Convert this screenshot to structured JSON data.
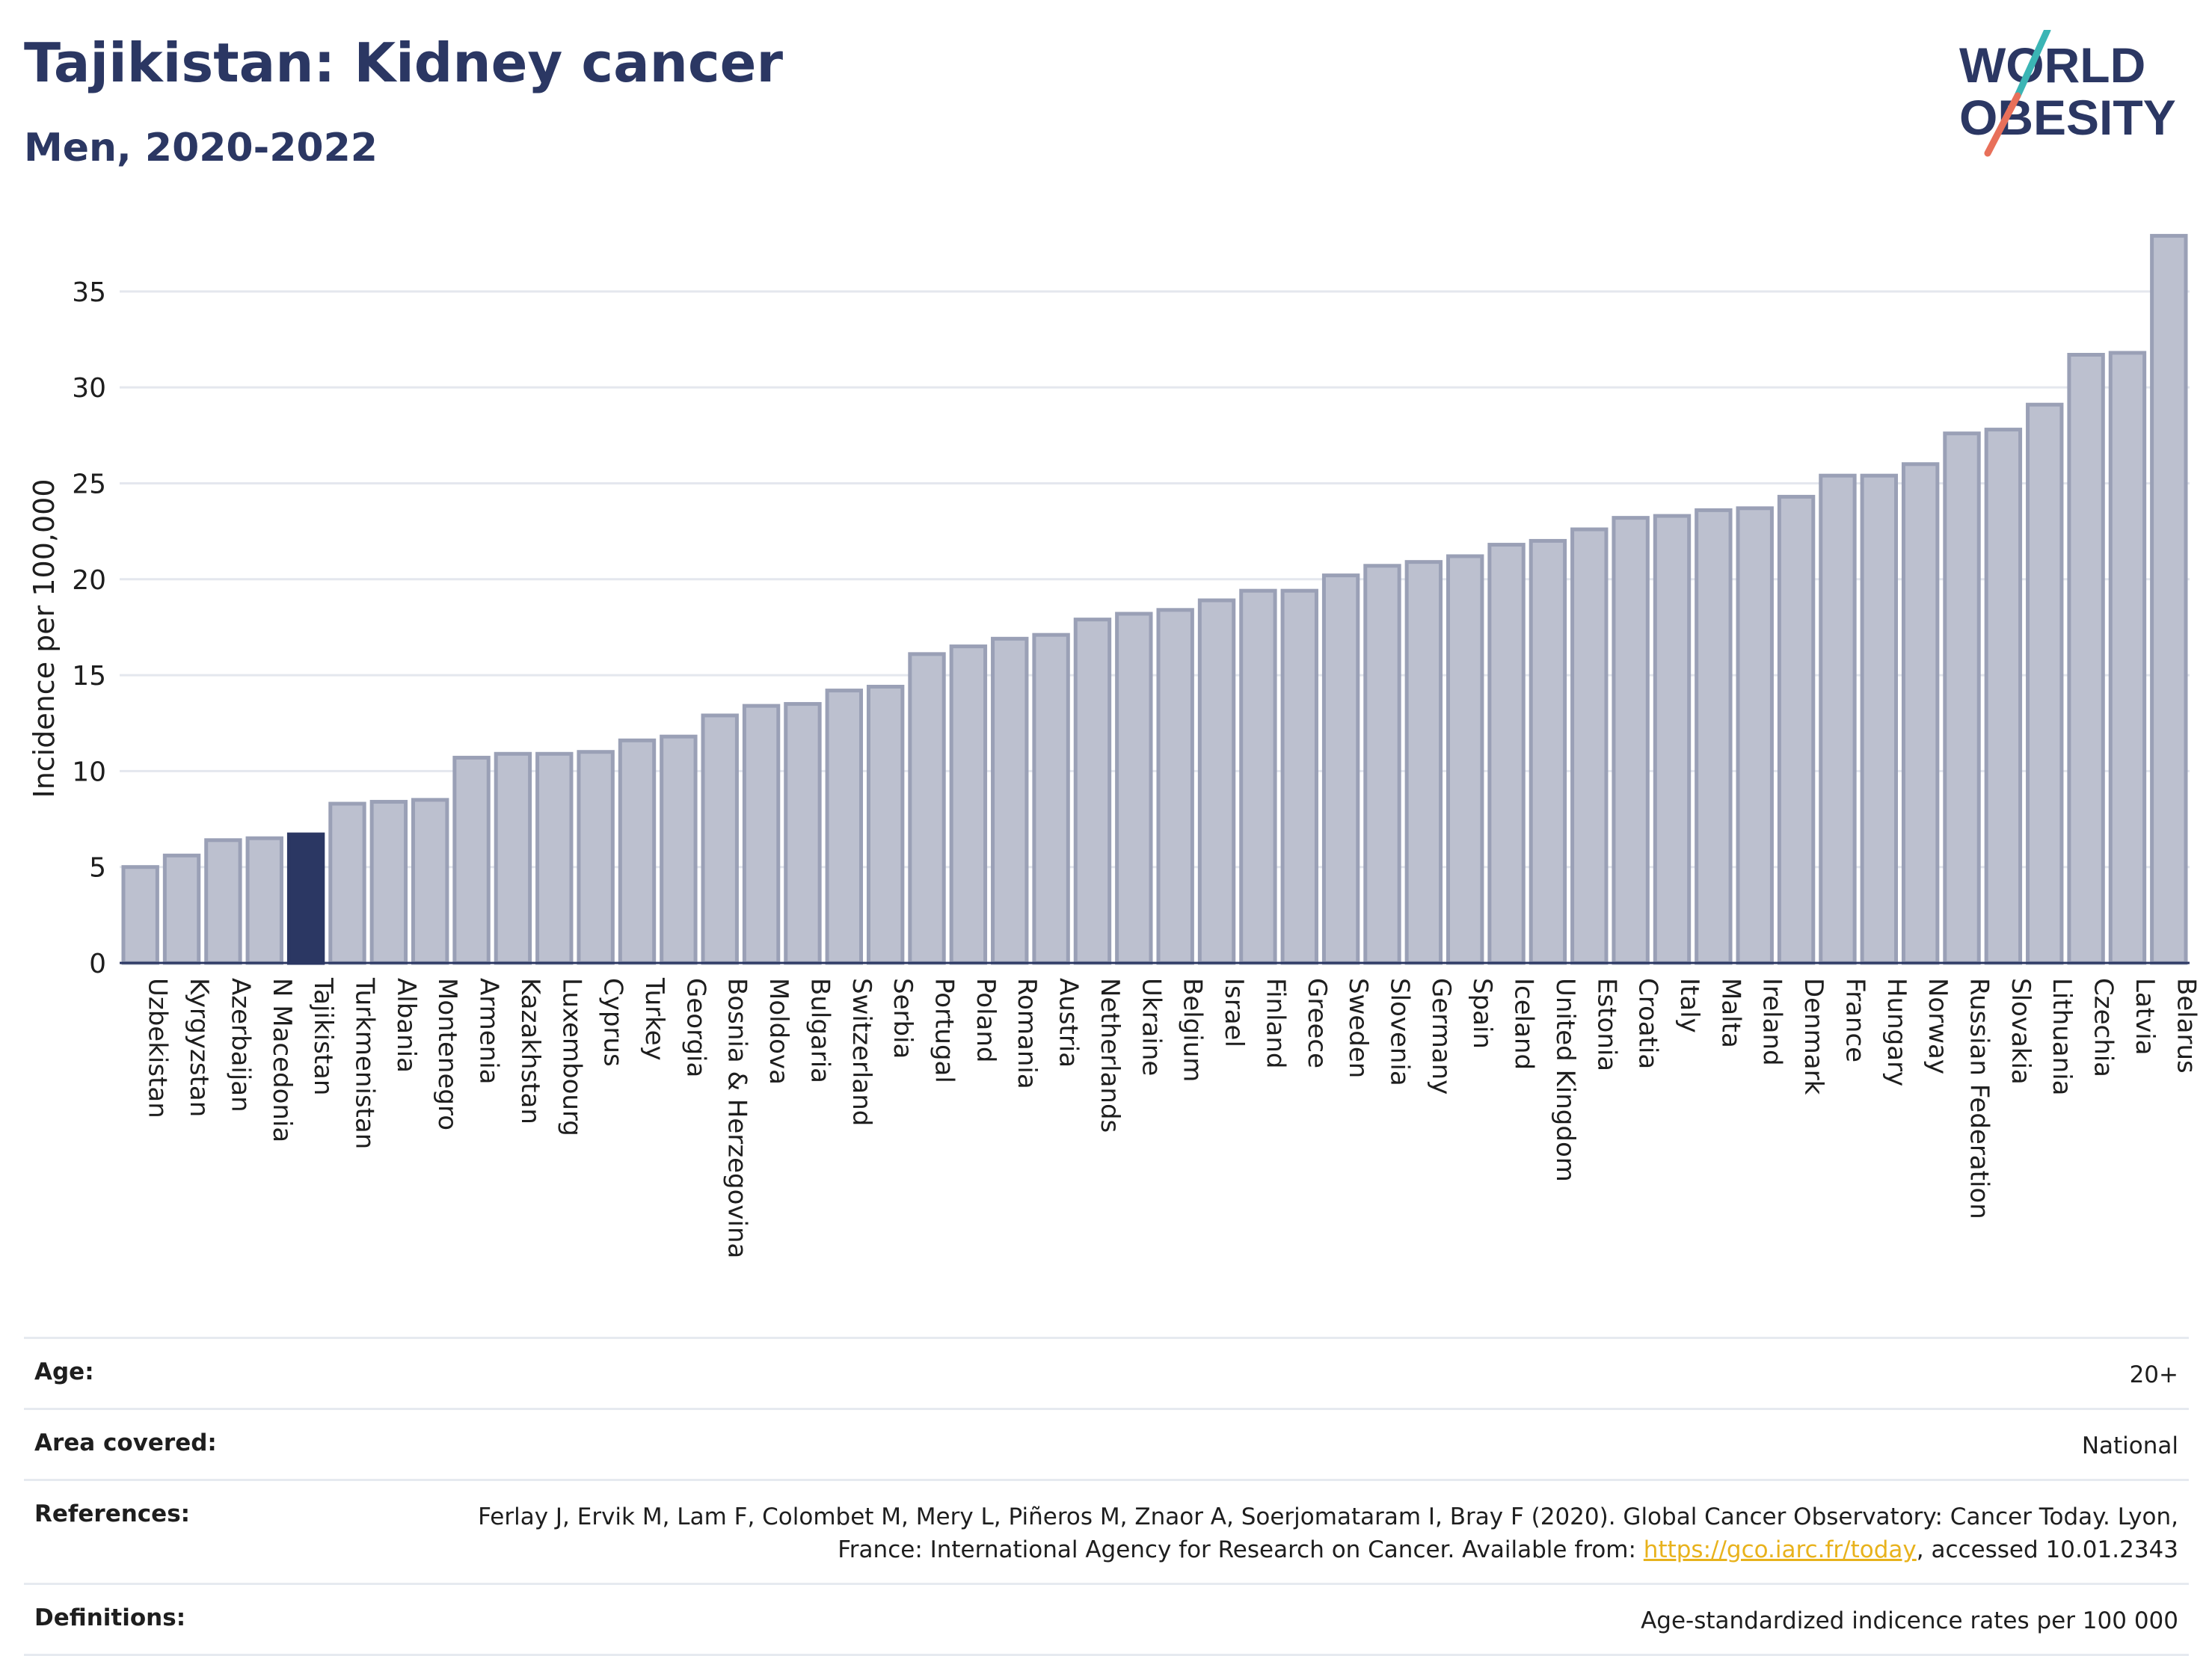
{
  "header": {
    "title": "Tajikistan: Kidney cancer",
    "subtitle": "Men, 2020-2022"
  },
  "logo": {
    "line1": "WORLD",
    "line2": "OBESITY",
    "accent_teal": "#3bb5b5",
    "accent_coral": "#e8705a"
  },
  "colors": {
    "bar_default": "#bcc0cf",
    "bar_border": "#9aa0b6",
    "bar_highlight": "#2b3763",
    "text": "#2b3763"
  },
  "chart_data": {
    "type": "bar",
    "title": "Tajikistan: Kidney cancer",
    "subtitle": "Men, 2020-2022",
    "ylabel": "Incidence per 100,000",
    "xlabel": "",
    "ylim": [
      0,
      38.5
    ],
    "yticks": [
      0,
      5,
      10,
      15,
      20,
      25,
      30,
      35
    ],
    "grid": true,
    "highlight": "Tajikistan",
    "categories": [
      "Uzbekistan",
      "Kyrgyzstan",
      "Azerbaijan",
      "N Macedonia",
      "Tajikistan",
      "Turkmenistan",
      "Albania",
      "Montenegro",
      "Armenia",
      "Kazakhstan",
      "Luxembourg",
      "Cyprus",
      "Turkey",
      "Georgia",
      "Bosnia & Herzegovina",
      "Moldova",
      "Bulgaria",
      "Switzerland",
      "Serbia",
      "Portugal",
      "Poland",
      "Romania",
      "Austria",
      "Netherlands",
      "Ukraine",
      "Belgium",
      "Israel",
      "Finland",
      "Greece",
      "Sweden",
      "Slovenia",
      "Germany",
      "Spain",
      "Iceland",
      "United Kingdom",
      "Estonia",
      "Croatia",
      "Italy",
      "Malta",
      "Ireland",
      "Denmark",
      "France",
      "Hungary",
      "Norway",
      "Russian Federation",
      "Slovakia",
      "Lithuania",
      "Czechia",
      "Latvia",
      "Belarus"
    ],
    "values": [
      5.0,
      5.6,
      6.4,
      6.5,
      6.7,
      8.3,
      8.4,
      8.5,
      10.7,
      10.9,
      10.9,
      11.0,
      11.6,
      11.8,
      12.9,
      13.4,
      13.5,
      14.2,
      14.4,
      16.1,
      16.5,
      16.9,
      17.1,
      17.9,
      18.2,
      18.4,
      18.9,
      19.4,
      19.4,
      20.2,
      20.7,
      20.9,
      21.2,
      21.8,
      22.0,
      22.6,
      23.2,
      23.3,
      23.6,
      23.7,
      24.3,
      25.4,
      25.4,
      26.0,
      27.6,
      27.8,
      29.1,
      31.7,
      31.8,
      37.9
    ]
  },
  "info": {
    "age_label": "Age:",
    "age_value": "20+",
    "area_label": "Area covered:",
    "area_value": "National",
    "references_label": "References:",
    "references_text_1": "Ferlay J, Ervik M, Lam F, Colombet M, Mery L, Piñeros M, Znaor A, Soerjomataram I, Bray F (2020). Global Cancer Observatory: Cancer Today. Lyon, France: International Agency for Research on Cancer. Available from: ",
    "references_link": "https://gco.iarc.fr/today",
    "references_text_2": ", accessed 10.01.2343",
    "definitions_label": "Definitions:",
    "definitions_value": "Age-standardized indicence rates per 100 000"
  }
}
